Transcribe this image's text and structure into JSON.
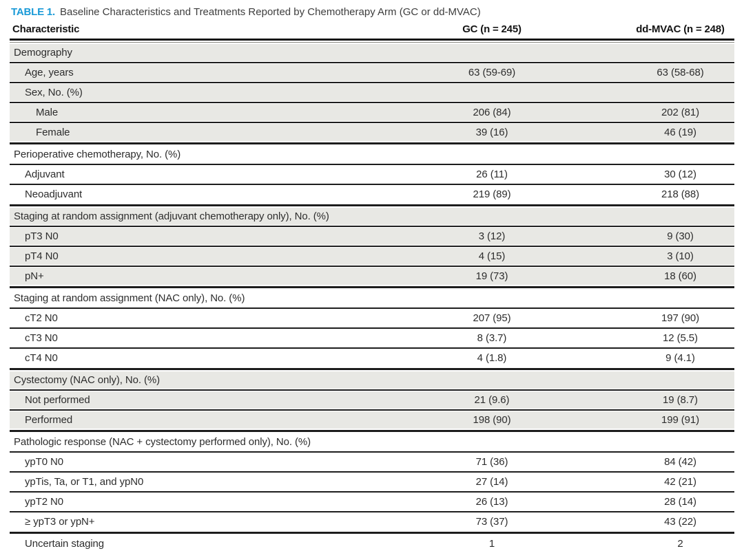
{
  "caption": {
    "label": "TABLE 1.",
    "text": "Baseline Characteristics and Treatments Reported by Chemotherapy Arm (GC or dd-MVAC)"
  },
  "columns": [
    "Characteristic",
    "GC (n = 245)",
    "dd-MVAC (n = 248)"
  ],
  "colors": {
    "accent_blue": "#1a9ad7",
    "row_gray": "#e8e8e4",
    "rule": "#1d1d1d"
  },
  "rows": [
    {
      "label": "Demography",
      "indent": 0,
      "shade": "gray",
      "sep": "none",
      "gc": "",
      "dd": ""
    },
    {
      "label": "Age, years",
      "indent": 1,
      "shade": "gray",
      "sep": "thin",
      "gc": "63 (59-69)",
      "dd": "63 (58-68)"
    },
    {
      "label": "Sex, No. (%)",
      "indent": 1,
      "shade": "gray",
      "sep": "thin",
      "gc": "",
      "dd": ""
    },
    {
      "label": "Male",
      "indent": 2,
      "shade": "gray",
      "sep": "thin",
      "gc": "206 (84)",
      "dd": "202 (81)"
    },
    {
      "label": "Female",
      "indent": 2,
      "shade": "gray",
      "sep": "thin",
      "gc": "39 (16)",
      "dd": "46 (19)"
    },
    {
      "label": "Perioperative chemotherapy, No. (%)",
      "indent": 0,
      "shade": "white",
      "sep": "thick",
      "gc": "",
      "dd": ""
    },
    {
      "label": "Adjuvant",
      "indent": 1,
      "shade": "white",
      "sep": "thin",
      "gc": "26 (11)",
      "dd": "30 (12)"
    },
    {
      "label": "Neoadjuvant",
      "indent": 1,
      "shade": "white",
      "sep": "thin",
      "gc": "219 (89)",
      "dd": "218 (88)"
    },
    {
      "label": "Staging at random assignment (adjuvant chemotherapy only), No. (%)",
      "indent": 0,
      "shade": "gray",
      "sep": "thick",
      "gc": "",
      "dd": ""
    },
    {
      "label": "pT3 N0",
      "indent": 1,
      "shade": "gray",
      "sep": "thin",
      "gc": "3 (12)",
      "dd": "9 (30)"
    },
    {
      "label": "pT4 N0",
      "indent": 1,
      "shade": "gray",
      "sep": "thin",
      "gc": "4 (15)",
      "dd": "3 (10)"
    },
    {
      "label": "pN+",
      "indent": 1,
      "shade": "gray",
      "sep": "thin",
      "gc": "19 (73)",
      "dd": "18 (60)"
    },
    {
      "label": "Staging at random assignment (NAC only), No. (%)",
      "indent": 0,
      "shade": "white",
      "sep": "thick",
      "gc": "",
      "dd": ""
    },
    {
      "label": "cT2 N0",
      "indent": 1,
      "shade": "white",
      "sep": "thin",
      "gc": "207 (95)",
      "dd": "197 (90)"
    },
    {
      "label": "cT3 N0",
      "indent": 1,
      "shade": "white",
      "sep": "thin",
      "gc": "8 (3.7)",
      "dd": "12 (5.5)"
    },
    {
      "label": "cT4 N0",
      "indent": 1,
      "shade": "white",
      "sep": "thin",
      "gc": "4 (1.8)",
      "dd": "9 (4.1)"
    },
    {
      "label": "Cystectomy (NAC only), No. (%)",
      "indent": 0,
      "shade": "gray",
      "sep": "thick",
      "gc": "",
      "dd": ""
    },
    {
      "label": "Not performed",
      "indent": 1,
      "shade": "gray",
      "sep": "thin",
      "gc": "21 (9.6)",
      "dd": "19 (8.7)"
    },
    {
      "label": "Performed",
      "indent": 1,
      "shade": "gray",
      "sep": "thin",
      "gc": "198 (90)",
      "dd": "199 (91)"
    },
    {
      "label": "Pathologic response (NAC + cystectomy performed only), No. (%)",
      "indent": 0,
      "shade": "white",
      "sep": "thick",
      "gc": "",
      "dd": ""
    },
    {
      "label": "ypT0 N0",
      "indent": 1,
      "shade": "white",
      "sep": "thin",
      "gc": "71 (36)",
      "dd": "84 (42)"
    },
    {
      "label": "ypTis, Ta, or T1, and ypN0",
      "indent": 1,
      "shade": "white",
      "sep": "thin",
      "gc": "27 (14)",
      "dd": "42 (21)"
    },
    {
      "label": "ypT2 N0",
      "indent": 1,
      "shade": "white",
      "sep": "thin",
      "gc": "26 (13)",
      "dd": "28 (14)"
    },
    {
      "label": "≥ ypT3 or ypN+",
      "indent": 1,
      "shade": "white",
      "sep": "thin",
      "gc": "73 (37)",
      "dd": "43 (22)"
    },
    {
      "label": "Uncertain staging",
      "indent": 1,
      "shade": "white",
      "sep": "thick",
      "gc": "1",
      "dd": "2"
    }
  ]
}
